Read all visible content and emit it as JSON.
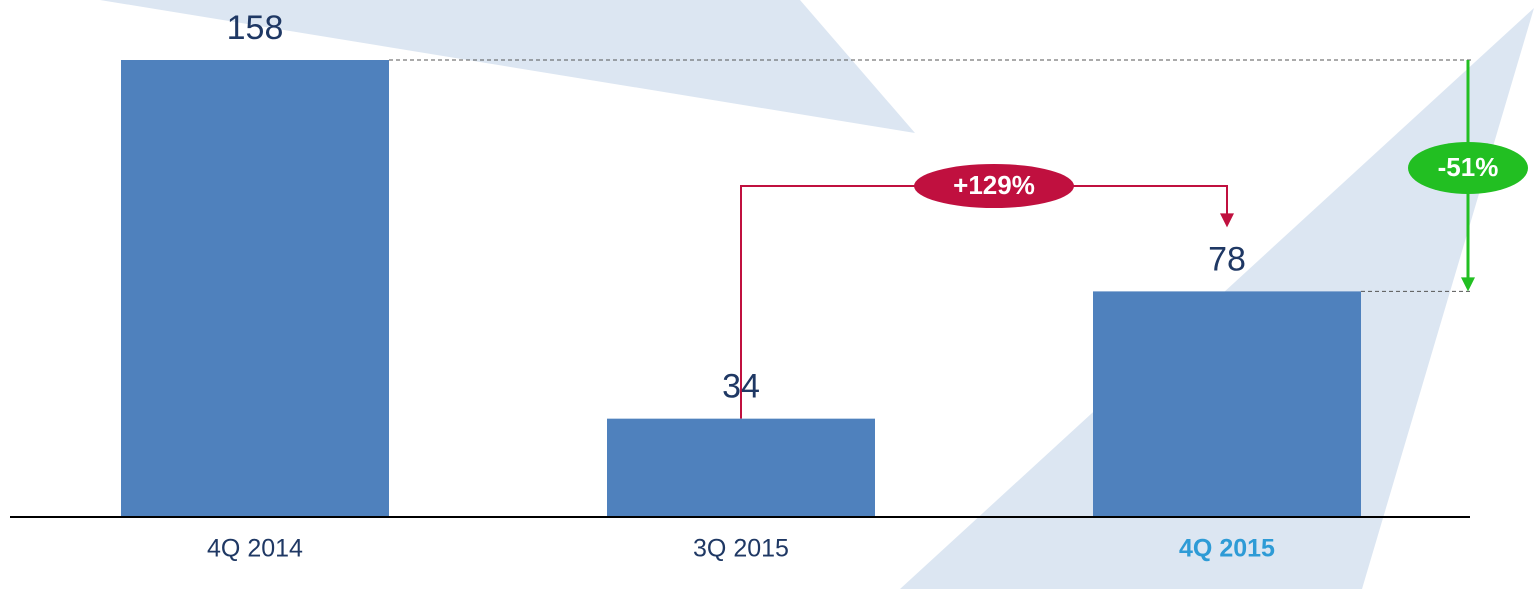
{
  "chart_data": {
    "type": "bar",
    "categories": [
      "4Q 2014",
      "3Q 2015",
      "4Q 2015"
    ],
    "values": [
      158,
      34,
      78
    ],
    "color": "#4f81bd",
    "highlight": 2,
    "highlight_color": "#2e9bd6",
    "annotations": [
      {
        "text": "+129%",
        "color": "#c0103f",
        "from": 1,
        "to": 2
      },
      {
        "text": "-51%",
        "color": "#22bf22",
        "from": 0,
        "to": 2
      }
    ]
  }
}
